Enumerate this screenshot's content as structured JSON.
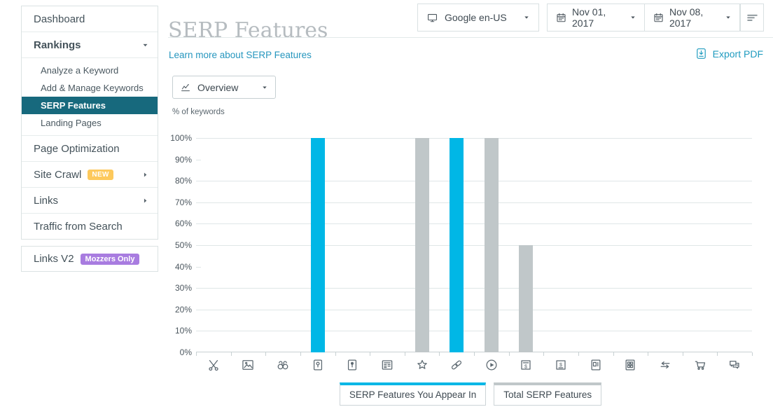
{
  "sidebar": {
    "items": [
      {
        "label": "Dashboard"
      },
      {
        "label": "Rankings"
      },
      {
        "label": "Analyze a Keyword"
      },
      {
        "label": "Add & Manage Keywords"
      },
      {
        "label": "SERP Features"
      },
      {
        "label": "Landing Pages"
      },
      {
        "label": "Page Optimization"
      },
      {
        "label": "Site Crawl",
        "badge": "NEW"
      },
      {
        "label": "Links"
      },
      {
        "label": "Traffic from Search"
      }
    ],
    "links_v2": {
      "label": "Links V2",
      "badge": "Mozzers Only"
    }
  },
  "header": {
    "title": "SERP Features",
    "learn_more": "Learn more about SERP Features",
    "export_pdf": "Export PDF"
  },
  "toolbar": {
    "engine": "Google en-US",
    "date_start": "Nov 01, 2017",
    "date_end": "Nov 08, 2017"
  },
  "view_select": {
    "value": "Overview"
  },
  "icons": {
    "engine": "monitor",
    "calendar": "calendar",
    "menu": "menu-lines",
    "export": "export-pdf",
    "overview": "chart-line",
    "caret_down": "caret-down",
    "caret_right": "caret-right"
  },
  "chart_data": {
    "type": "bar",
    "title": "",
    "xlabel": "",
    "ylabel": "% of keywords",
    "ylim": [
      0,
      100
    ],
    "ytick_step": 10,
    "ytick_suffix": "%",
    "grid": true,
    "gridlines_missing": [
      40,
      90
    ],
    "legend_position": "bottom",
    "categories": [
      "Featured Snippet",
      "Image Pack",
      "In-Depth Article",
      "Local Pack",
      "Local Teaser",
      "News Box",
      "Reviews",
      "Site Links",
      "Video",
      "AdWords Top",
      "AdWords Bottom",
      "Knowledge Card",
      "Knowledge Panel",
      "Related Questions",
      "Shopping Results",
      "Tweets"
    ],
    "category_icons": [
      "scissors",
      "image",
      "binoculars",
      "map-pin",
      "map-pin-solid",
      "news",
      "star",
      "link",
      "play-circle",
      "dollar-top",
      "dollar-bottom",
      "card",
      "grid-panel",
      "arrows-swap",
      "cart",
      "chat"
    ],
    "series": [
      {
        "name": "SERP Features You Appear In",
        "color": "#00b7e6",
        "values": [
          0,
          0,
          0,
          100,
          0,
          0,
          0,
          100,
          0,
          0,
          0,
          0,
          0,
          0,
          0,
          0
        ]
      },
      {
        "name": "Total SERP Features",
        "color": "#c0c7c9",
        "values": [
          0,
          0,
          0,
          0,
          0,
          0,
          100,
          0,
          100,
          50,
          0,
          0,
          0,
          0,
          0,
          0
        ]
      }
    ]
  },
  "colors": {
    "sidebar_selected_bg": "#17697d",
    "link_blue": "#2596be",
    "bar_blue": "#00b7e6",
    "bar_gray": "#c0c7c9",
    "badge_new_bg": "#fdc95c",
    "badge_mozzers_bg": "#a87ce0",
    "title_gray": "#b6bcc0"
  }
}
